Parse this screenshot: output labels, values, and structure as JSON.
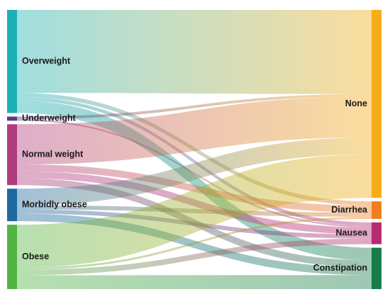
{
  "chart_data": {
    "type": "sankey",
    "sources": [
      {
        "id": "overweight",
        "label": "Overweight",
        "color": "#1bb0b4"
      },
      {
        "id": "underweight",
        "label": "Underweight",
        "color": "#5b3a86"
      },
      {
        "id": "normal",
        "label": "Normal weight",
        "color": "#b03c7e"
      },
      {
        "id": "morbid",
        "label": "Morbidly obese",
        "color": "#1d6aa0"
      },
      {
        "id": "obese",
        "label": "Obese",
        "color": "#52b443"
      }
    ],
    "targets": [
      {
        "id": "none",
        "label": "None",
        "color": "#f5ae17"
      },
      {
        "id": "diarrhea",
        "label": "Diarrhea",
        "color": "#f07f1e"
      },
      {
        "id": "nausea",
        "label": "Nausea",
        "color": "#b52b71"
      },
      {
        "id": "constipation",
        "label": "Constipation",
        "color": "#197a4c"
      }
    ],
    "links": [
      {
        "source": "overweight",
        "target": "none",
        "value": 120
      },
      {
        "source": "overweight",
        "target": "diarrhea",
        "value": 6
      },
      {
        "source": "overweight",
        "target": "nausea",
        "value": 5
      },
      {
        "source": "overweight",
        "target": "constipation",
        "value": 18
      },
      {
        "source": "underweight",
        "target": "none",
        "value": 4
      },
      {
        "source": "underweight",
        "target": "nausea",
        "value": 2
      },
      {
        "source": "normal",
        "target": "none",
        "value": 58
      },
      {
        "source": "normal",
        "target": "diarrhea",
        "value": 10
      },
      {
        "source": "normal",
        "target": "nausea",
        "value": 10
      },
      {
        "source": "normal",
        "target": "constipation",
        "value": 10
      },
      {
        "source": "morbid",
        "target": "none",
        "value": 24
      },
      {
        "source": "morbid",
        "target": "diarrhea",
        "value": 6
      },
      {
        "source": "morbid",
        "target": "nausea",
        "value": 6
      },
      {
        "source": "morbid",
        "target": "constipation",
        "value": 11
      },
      {
        "source": "obese",
        "target": "none",
        "value": 62
      },
      {
        "source": "obese",
        "target": "diarrhea",
        "value": 3
      },
      {
        "source": "obese",
        "target": "nausea",
        "value": 8
      },
      {
        "source": "obese",
        "target": "constipation",
        "value": 20
      }
    ]
  }
}
